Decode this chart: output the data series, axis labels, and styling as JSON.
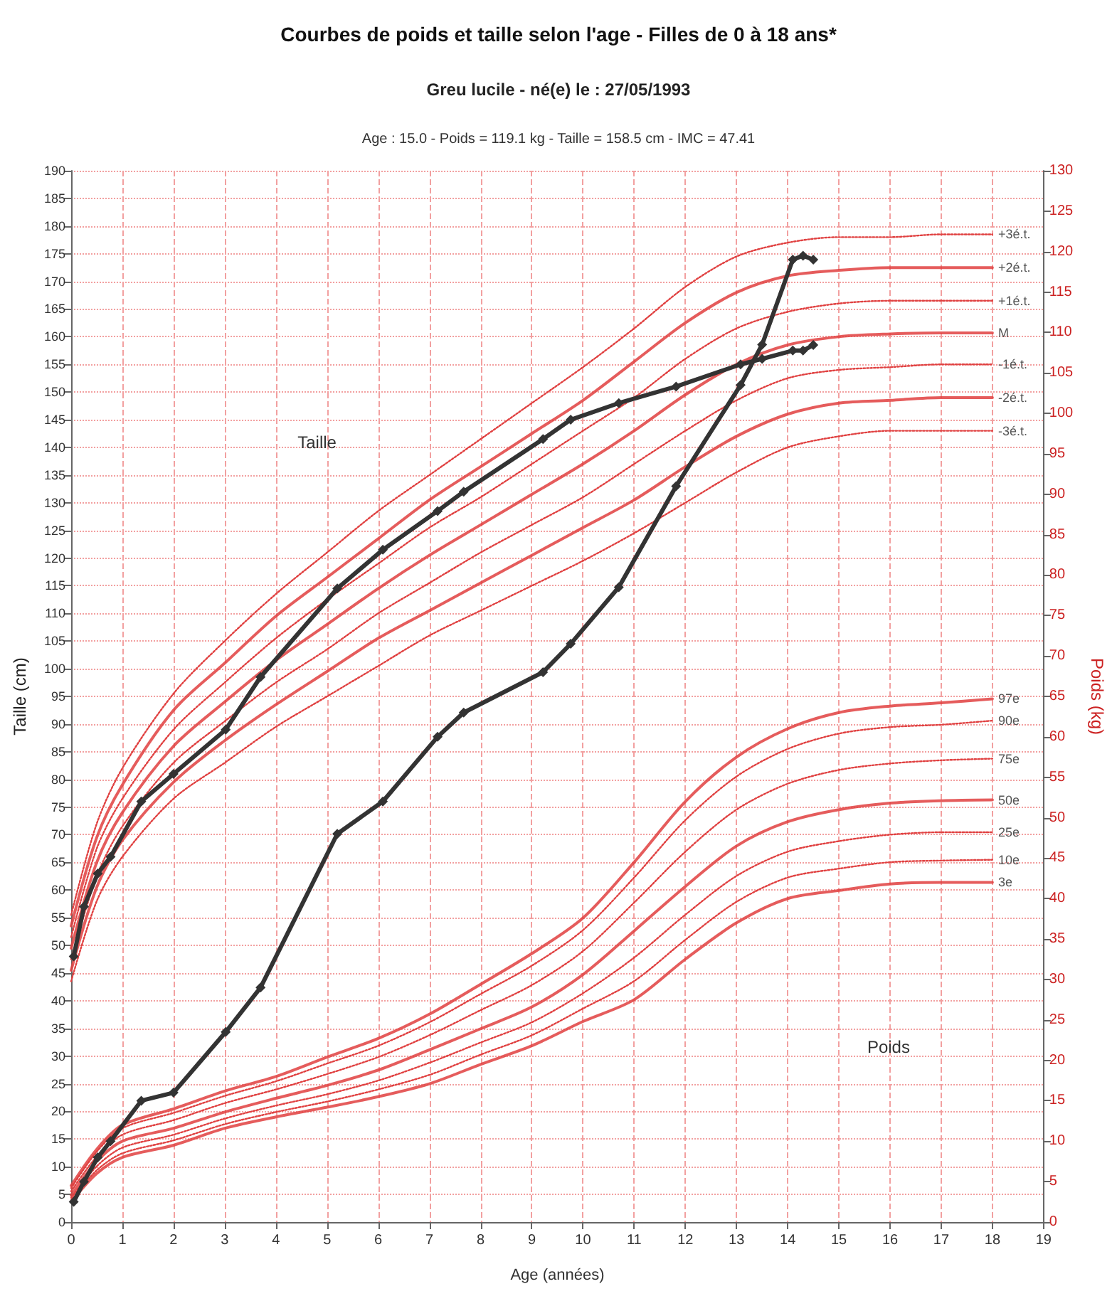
{
  "chart_data": {
    "type": "line",
    "title": "Courbes de poids et taille selon l'age - Filles de 0 à 18 ans*",
    "subtitle": "Greu lucile - né(e) le : 27/05/1993",
    "xlabel": "Age (années)",
    "ylabel": "Taille (cm)",
    "y2label": "Poids (kg)",
    "annotations": [
      "Age : 15.0 - Poids = 119.1 kg - Taille = 158.5 cm - IMC = 47.41",
      "Taille",
      "Poids"
    ],
    "xlim": [
      0,
      19
    ],
    "xticks": [
      0,
      1,
      2,
      3,
      4,
      5,
      6,
      7,
      8,
      9,
      10,
      11,
      12,
      13,
      14,
      15,
      16,
      17,
      18,
      19
    ],
    "ylim": [
      0,
      190
    ],
    "yticks": [
      0,
      5,
      10,
      15,
      20,
      25,
      30,
      35,
      40,
      45,
      50,
      55,
      60,
      65,
      70,
      75,
      80,
      85,
      90,
      95,
      100,
      105,
      110,
      115,
      120,
      125,
      130,
      135,
      140,
      145,
      150,
      155,
      160,
      165,
      170,
      175,
      180,
      185,
      190
    ],
    "y2lim": [
      0,
      130
    ],
    "y2ticks": [
      0,
      5,
      10,
      15,
      20,
      25,
      30,
      35,
      40,
      45,
      50,
      55,
      60,
      65,
      70,
      75,
      80,
      85,
      90,
      95,
      100,
      105,
      110,
      115,
      120,
      125,
      130
    ],
    "grid": true,
    "legend": false,
    "series": [
      {
        "name": "+3é.t.",
        "color": "#e04040",
        "line_style": "dotted",
        "marker": "none",
        "x": [
          0,
          0.5,
          1,
          2,
          3,
          4,
          5,
          6,
          7,
          8,
          9,
          10,
          11,
          12,
          13,
          14,
          15,
          16,
          17,
          18
        ],
        "values": [
          55.5,
          72,
          82,
          95.5,
          105,
          113.5,
          121,
          128.5,
          135,
          141.5,
          148,
          154.5,
          161.5,
          169,
          174.5,
          177,
          178,
          178,
          178.5,
          178.5
        ]
      },
      {
        "name": "+2é.t.",
        "color": "#e04040",
        "line_style": "solid",
        "marker": "none",
        "x": [
          0,
          0.5,
          1,
          2,
          3,
          4,
          5,
          6,
          7,
          8,
          9,
          10,
          11,
          12,
          13,
          14,
          15,
          16,
          17,
          18
        ],
        "values": [
          53.5,
          69.5,
          79,
          92.5,
          101,
          109.5,
          116.5,
          123.5,
          130.5,
          136.5,
          142.5,
          148.5,
          155.5,
          162.5,
          168,
          171,
          172,
          172.5,
          172.5,
          172.5
        ]
      },
      {
        "name": "+1é.t.",
        "color": "#e04040",
        "line_style": "dotted",
        "marker": "none",
        "x": [
          0,
          0.5,
          1,
          2,
          3,
          4,
          5,
          6,
          7,
          8,
          9,
          10,
          11,
          12,
          13,
          14,
          15,
          16,
          17,
          18
        ],
        "values": [
          51.5,
          67.5,
          76.5,
          89,
          97.5,
          105.5,
          112.5,
          119,
          125.5,
          131,
          137,
          143,
          149,
          156,
          161.5,
          164.5,
          166,
          166.5,
          166.5,
          166.5
        ]
      },
      {
        "name": "M",
        "color": "#e04040",
        "line_style": "solid",
        "marker": "none",
        "x": [
          0,
          0.5,
          1,
          2,
          3,
          4,
          5,
          6,
          7,
          8,
          9,
          10,
          11,
          12,
          13,
          14,
          15,
          16,
          17,
          18
        ],
        "values": [
          49.5,
          65,
          74,
          86,
          94,
          101.5,
          108,
          114.5,
          120.5,
          126,
          131.5,
          137,
          143,
          149.5,
          155,
          158.5,
          160,
          160.5,
          160.7,
          160.7
        ]
      },
      {
        "name": "-1é.t.",
        "color": "#e04040",
        "line_style": "dotted",
        "marker": "none",
        "x": [
          0,
          0.5,
          1,
          2,
          3,
          4,
          5,
          6,
          7,
          8,
          9,
          10,
          11,
          12,
          13,
          14,
          15,
          16,
          17,
          18
        ],
        "values": [
          47.5,
          62.5,
          71.5,
          83,
          90.5,
          97.5,
          103.5,
          110,
          115.5,
          121,
          126,
          131,
          137,
          143,
          148.5,
          152.5,
          154,
          154.5,
          155,
          155
        ]
      },
      {
        "name": "-2é.t.",
        "color": "#e04040",
        "line_style": "solid",
        "marker": "none",
        "x": [
          0,
          0.5,
          1,
          2,
          3,
          4,
          5,
          6,
          7,
          8,
          9,
          10,
          11,
          12,
          13,
          14,
          15,
          16,
          17,
          18
        ],
        "values": [
          45.5,
          60.5,
          69,
          79.5,
          87,
          93.5,
          99.5,
          105.5,
          110.5,
          115.5,
          120.5,
          125.5,
          130.5,
          136.5,
          142,
          146,
          148,
          148.5,
          149,
          149
        ]
      },
      {
        "name": "-3é.t.",
        "color": "#e04040",
        "line_style": "dotted",
        "marker": "none",
        "x": [
          0,
          0.5,
          1,
          2,
          3,
          4,
          5,
          6,
          7,
          8,
          9,
          10,
          11,
          12,
          13,
          14,
          15,
          16,
          17,
          18
        ],
        "values": [
          43.5,
          58,
          66,
          76.5,
          83,
          89.5,
          95,
          100.5,
          106,
          110.5,
          115,
          119.5,
          124.5,
          130,
          135.5,
          140,
          142,
          143,
          143,
          143
        ]
      },
      {
        "name": "97e",
        "color": "#e04040",
        "line_style": "solid",
        "marker": "none",
        "axis": "y2",
        "x": [
          0,
          0.5,
          1,
          2,
          3,
          4,
          5,
          6,
          7,
          8,
          9,
          10,
          11,
          12,
          13,
          14,
          15,
          16,
          17,
          18
        ],
        "values": [
          4.5,
          9,
          12,
          14,
          16.2,
          18,
          20.4,
          22.7,
          25.7,
          29.4,
          33.2,
          37.6,
          44.5,
          52,
          57.5,
          61,
          63,
          63.8,
          64.2,
          64.7
        ]
      },
      {
        "name": "90e",
        "color": "#e04040",
        "line_style": "dotted",
        "marker": "none",
        "axis": "y2",
        "x": [
          0,
          0.5,
          1,
          2,
          3,
          4,
          5,
          6,
          7,
          8,
          9,
          10,
          11,
          12,
          13,
          14,
          15,
          16,
          17,
          18
        ],
        "values": [
          4.2,
          8.7,
          11.6,
          13.5,
          15.6,
          17.4,
          19.6,
          21.8,
          24.7,
          28.2,
          31.7,
          36.1,
          42.6,
          49.7,
          55.1,
          58.5,
          60.4,
          61.2,
          61.5,
          62
        ]
      },
      {
        "name": "75e",
        "color": "#e04040",
        "line_style": "dotted",
        "marker": "none",
        "axis": "y2",
        "x": [
          0,
          0.5,
          1,
          2,
          3,
          4,
          5,
          6,
          7,
          8,
          9,
          10,
          11,
          12,
          13,
          14,
          15,
          16,
          17,
          18
        ],
        "values": [
          3.8,
          8.1,
          10.8,
          12.6,
          14.7,
          16.4,
          18.3,
          20.4,
          23.1,
          26.2,
          29.3,
          33.5,
          39.5,
          45.8,
          51,
          54.2,
          55.9,
          56.7,
          57.1,
          57.3
        ]
      },
      {
        "name": "50e",
        "color": "#e04040",
        "line_style": "solid",
        "marker": "none",
        "axis": "y2",
        "x": [
          0,
          0.5,
          1,
          2,
          3,
          4,
          5,
          6,
          7,
          8,
          9,
          10,
          11,
          12,
          13,
          14,
          15,
          16,
          17,
          18
        ],
        "values": [
          3.3,
          7.5,
          10,
          11.6,
          13.6,
          15.3,
          16.9,
          18.8,
          21.3,
          23.9,
          26.6,
          30.6,
          36,
          41.5,
          46.5,
          49.5,
          51,
          51.8,
          52.1,
          52.2
        ]
      },
      {
        "name": "25e",
        "color": "#e04040",
        "line_style": "dotted",
        "marker": "none",
        "axis": "y2",
        "x": [
          0,
          0.5,
          1,
          2,
          3,
          4,
          5,
          6,
          7,
          8,
          9,
          10,
          11,
          12,
          13,
          14,
          15,
          16,
          17,
          18
        ],
        "values": [
          3,
          6.9,
          9.2,
          10.8,
          12.8,
          14.4,
          15.8,
          17.5,
          19.7,
          22.2,
          24.7,
          28.3,
          32.7,
          38,
          42.8,
          45.8,
          47.1,
          47.9,
          48.2,
          48.2
        ]
      },
      {
        "name": "10e",
        "color": "#e04040",
        "line_style": "dotted",
        "marker": "none",
        "axis": "y2",
        "x": [
          0,
          0.5,
          1,
          2,
          3,
          4,
          5,
          6,
          7,
          8,
          9,
          10,
          11,
          12,
          13,
          14,
          15,
          16,
          17,
          18
        ],
        "values": [
          2.7,
          6.4,
          8.5,
          10.1,
          12.1,
          13.6,
          14.9,
          16.4,
          18.2,
          20.7,
          23.1,
          26.4,
          29.8,
          34.9,
          39.6,
          42.6,
          43.7,
          44.5,
          44.7,
          44.8
        ]
      },
      {
        "name": "3e",
        "color": "#e04040",
        "line_style": "solid",
        "marker": "none",
        "axis": "y2",
        "x": [
          0,
          0.5,
          1,
          2,
          3,
          4,
          5,
          6,
          7,
          8,
          9,
          10,
          11,
          12,
          13,
          14,
          15,
          16,
          17,
          18
        ],
        "values": [
          2.5,
          6,
          8,
          9.5,
          11.6,
          13,
          14.2,
          15.5,
          17.1,
          19.5,
          21.8,
          24.8,
          27.5,
          32.5,
          37,
          40,
          41,
          41.8,
          42,
          42
        ]
      },
      {
        "color": "#333333",
        "line_style": "solid",
        "marker": "diamond",
        "x": [
          0.05,
          0.25,
          0.52,
          0.77,
          1.37,
          2.0,
          3.02,
          3.7,
          5.2,
          6.09,
          7.16,
          7.67,
          9.22,
          9.76,
          10.7,
          11.82,
          13.08,
          13.5,
          14.1,
          14.3,
          14.5
        ],
        "values": [
          48,
          57,
          63,
          66,
          76,
          81,
          89,
          98.5,
          114.5,
          121.5,
          128.5,
          132,
          141.5,
          145,
          148,
          151,
          155,
          156,
          157.5,
          157.5,
          158.5
        ]
      },
      {
        "color": "#333333",
        "line_style": "solid",
        "marker": "diamond",
        "axis": "y2",
        "x": [
          0.05,
          0.25,
          0.52,
          0.77,
          1.37,
          2.0,
          3.02,
          3.7,
          5.2,
          6.09,
          7.16,
          7.67,
          9.22,
          9.76,
          10.7,
          11.82,
          13.08,
          13.5,
          14.1,
          14.3,
          14.5
        ],
        "values": [
          2.5,
          5,
          8,
          10,
          15,
          16,
          23.5,
          29,
          48,
          52,
          60,
          63,
          68,
          71.5,
          78.5,
          91,
          103.5,
          108.5,
          119,
          119.5,
          119
        ]
      }
    ]
  }
}
